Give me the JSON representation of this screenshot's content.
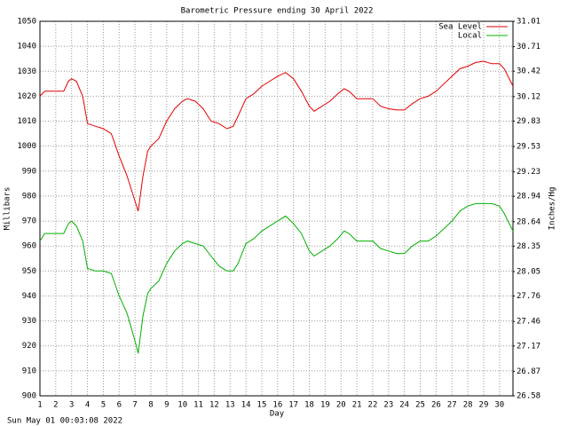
{
  "chart_data": {
    "type": "line",
    "title": "Barometric Pressure ending 30 April 2022",
    "x_label": "Day",
    "y_label": "Millibars",
    "y2_label": "Inches/Hg",
    "footer": "Sun May 01 00:03:08 2022",
    "x": [
      1,
      1.3,
      2,
      2.5,
      2.8,
      3,
      3.3,
      3.7,
      4,
      4.5,
      5,
      5.5,
      6,
      6.5,
      7,
      7.2,
      7.5,
      7.8,
      8,
      8.5,
      9,
      9.5,
      10,
      10.3,
      10.8,
      11.3,
      11.8,
      12.3,
      12.8,
      13.2,
      13.5,
      14,
      14.5,
      15,
      15.5,
      16,
      16.5,
      17,
      17.5,
      18,
      18.3,
      18.8,
      19.3,
      19.8,
      20.2,
      20.5,
      21,
      21.5,
      22,
      22.5,
      23,
      23.5,
      24,
      24.5,
      25,
      25.5,
      26,
      26.5,
      27,
      27.5,
      28,
      28.5,
      29,
      29.5,
      30,
      30.3,
      30.85
    ],
    "series": [
      {
        "name": "Sea Level",
        "color": "#e00000",
        "values": [
          1020,
          1022,
          1022,
          1022,
          1026,
          1027,
          1026,
          1020,
          1009,
          1008,
          1007,
          1005,
          996,
          988,
          978,
          974,
          988,
          998,
          1000,
          1003,
          1010,
          1015,
          1018,
          1019,
          1018,
          1015,
          1010,
          1009,
          1007,
          1008,
          1012,
          1019,
          1021,
          1024,
          1026,
          1028,
          1029.5,
          1027,
          1022,
          1016,
          1014,
          1016,
          1018,
          1021,
          1023,
          1022,
          1019,
          1019,
          1019,
          1016,
          1015,
          1014.5,
          1014.5,
          1017,
          1019,
          1020,
          1022,
          1025,
          1028,
          1031,
          1032,
          1033.5,
          1034,
          1033,
          1033,
          1031,
          1024
        ]
      },
      {
        "name": "Local",
        "color": "#00b000",
        "values": [
          962,
          965,
          965,
          965,
          969,
          970,
          968,
          962,
          951,
          950,
          950,
          949,
          940,
          933,
          922,
          917,
          932,
          941,
          943,
          946,
          953,
          958,
          961,
          962,
          961,
          960,
          956,
          952,
          950,
          950,
          953,
          961,
          963,
          966,
          968,
          970,
          972,
          969,
          965,
          958,
          956,
          958,
          960,
          963,
          966,
          965,
          962,
          962,
          962,
          959,
          958,
          957,
          957,
          960,
          962,
          962,
          964,
          967,
          970,
          974,
          976,
          977,
          977,
          977,
          976,
          973,
          966
        ]
      }
    ],
    "xlim": [
      1,
      30.85
    ],
    "xticks": [
      1,
      2,
      3,
      4,
      5,
      6,
      7,
      8,
      9,
      10,
      11,
      12,
      13,
      14,
      15,
      16,
      17,
      18,
      19,
      20,
      21,
      22,
      23,
      24,
      25,
      26,
      27,
      28,
      29,
      30
    ],
    "ylim": [
      900,
      1050
    ],
    "yticks": [
      900,
      910,
      920,
      930,
      940,
      950,
      960,
      970,
      980,
      990,
      1000,
      1010,
      1020,
      1030,
      1040,
      1050
    ],
    "y2lim": [
      26.58,
      31.01
    ],
    "y2ticks": [
      26.58,
      26.87,
      27.17,
      27.46,
      27.76,
      28.05,
      28.35,
      28.64,
      28.94,
      29.23,
      29.53,
      29.83,
      30.12,
      30.42,
      30.71,
      31.01
    ],
    "grid": true,
    "legend": "upper right"
  }
}
